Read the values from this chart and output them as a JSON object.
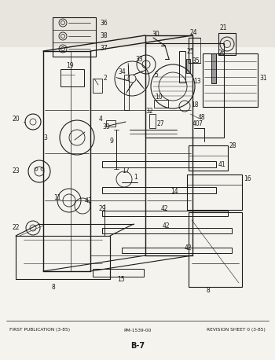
{
  "title": "B-7",
  "footer_left": "FIRST PUBLICATION (3-85)",
  "footer_center": "PM-1539-00",
  "footer_right": "REVISION SHEET 0 (3-85)",
  "bg_color": "#e8e5de",
  "line_color": "#1a1a1a",
  "fig_width": 3.5,
  "fig_height": 4.58,
  "dpi": 100
}
